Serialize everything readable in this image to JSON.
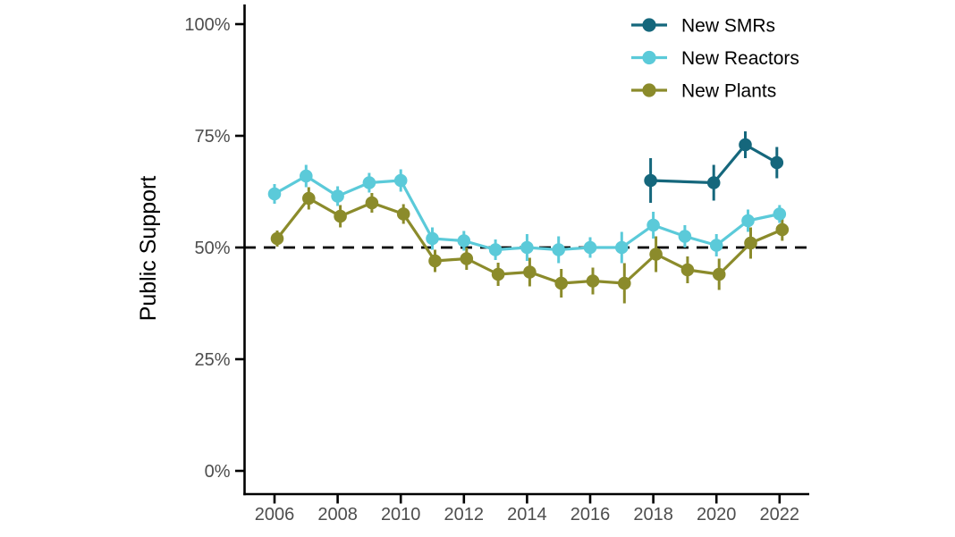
{
  "chart_data": {
    "type": "line",
    "title": "",
    "ylabel": "Public Support",
    "xlabel": "",
    "ylim": [
      0,
      100
    ],
    "xlim": [
      2006,
      2022
    ],
    "grid": false,
    "legend_position": "top-right",
    "reference_line": {
      "value": 50,
      "style": "dashed",
      "color": "#000000"
    },
    "y_ticks": [
      {
        "value": 0,
        "label": "0%"
      },
      {
        "value": 25,
        "label": "25%"
      },
      {
        "value": 50,
        "label": "50%"
      },
      {
        "value": 75,
        "label": "75%"
      },
      {
        "value": 100,
        "label": "100%"
      }
    ],
    "x_ticks": [
      {
        "value": 2006,
        "label": "2006"
      },
      {
        "value": 2008,
        "label": "2008"
      },
      {
        "value": 2010,
        "label": "2010"
      },
      {
        "value": 2012,
        "label": "2012"
      },
      {
        "value": 2014,
        "label": "2014"
      },
      {
        "value": 2016,
        "label": "2016"
      },
      {
        "value": 2018,
        "label": "2018"
      },
      {
        "value": 2020,
        "label": "2020"
      },
      {
        "value": 2022,
        "label": "2022"
      }
    ],
    "series": [
      {
        "name": "New SMRs",
        "color": "#15677C",
        "points": [
          {
            "year": 2018,
            "value": 65,
            "err": 5.0
          },
          {
            "year": 2020,
            "value": 64.5,
            "err": 4.0
          },
          {
            "year": 2021,
            "value": 73,
            "err": 3.0
          },
          {
            "year": 2022,
            "value": 69,
            "err": 3.5
          }
        ]
      },
      {
        "name": "New Reactors",
        "color": "#5BCAD9",
        "points": [
          {
            "year": 2006,
            "value": 62,
            "err": 2.2
          },
          {
            "year": 2007,
            "value": 66,
            "err": 2.5
          },
          {
            "year": 2008,
            "value": 61.5,
            "err": 2.2
          },
          {
            "year": 2009,
            "value": 64.5,
            "err": 2.2
          },
          {
            "year": 2010,
            "value": 65,
            "err": 2.5
          },
          {
            "year": 2011,
            "value": 52,
            "err": 2.5
          },
          {
            "year": 2012,
            "value": 51.5,
            "err": 2.2
          },
          {
            "year": 2013,
            "value": 49.5,
            "err": 2.3
          },
          {
            "year": 2014,
            "value": 50,
            "err": 3.0
          },
          {
            "year": 2015,
            "value": 49.5,
            "err": 3.0
          },
          {
            "year": 2016,
            "value": 50,
            "err": 2.3
          },
          {
            "year": 2017,
            "value": 50,
            "err": 3.5
          },
          {
            "year": 2018,
            "value": 55,
            "err": 3.0
          },
          {
            "year": 2019,
            "value": 52.5,
            "err": 2.5
          },
          {
            "year": 2020,
            "value": 50.5,
            "err": 2.5
          },
          {
            "year": 2021,
            "value": 56,
            "err": 2.5
          },
          {
            "year": 2022,
            "value": 57.5,
            "err": 2.0
          }
        ]
      },
      {
        "name": "New Plants",
        "color": "#8B8B2B",
        "points": [
          {
            "year": 2006,
            "value": 52,
            "err": 1.8
          },
          {
            "year": 2007,
            "value": 61,
            "err": 2.5
          },
          {
            "year": 2008,
            "value": 57,
            "err": 2.5
          },
          {
            "year": 2009,
            "value": 60,
            "err": 2.2
          },
          {
            "year": 2010,
            "value": 57.5,
            "err": 2.2
          },
          {
            "year": 2011,
            "value": 47,
            "err": 2.5
          },
          {
            "year": 2012,
            "value": 47.5,
            "err": 2.5
          },
          {
            "year": 2013,
            "value": 44,
            "err": 2.6
          },
          {
            "year": 2014,
            "value": 44.5,
            "err": 3.2
          },
          {
            "year": 2015,
            "value": 42,
            "err": 3.2
          },
          {
            "year": 2016,
            "value": 42.5,
            "err": 3.0
          },
          {
            "year": 2017,
            "value": 42,
            "err": 4.5
          },
          {
            "year": 2018,
            "value": 48.5,
            "err": 4.0
          },
          {
            "year": 2019,
            "value": 45,
            "err": 3.0
          },
          {
            "year": 2020,
            "value": 44,
            "err": 3.5
          },
          {
            "year": 2021,
            "value": 51,
            "err": 3.5
          },
          {
            "year": 2022,
            "value": 54,
            "err": 2.5
          }
        ]
      }
    ]
  }
}
